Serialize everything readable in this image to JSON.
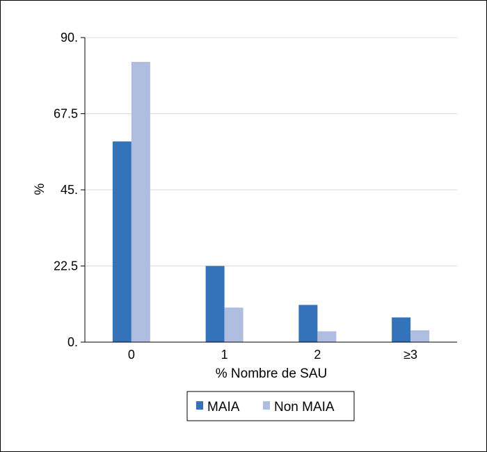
{
  "chart_data": {
    "type": "bar",
    "title": "",
    "xlabel": "% Nombre de SAU",
    "ylabel": "%",
    "categories": [
      "0",
      "1",
      "2",
      "≥3"
    ],
    "ylim": [
      0,
      90
    ],
    "yticks": [
      0,
      22.5,
      45,
      67.5,
      90
    ],
    "ytick_labels": [
      "0.",
      "22.5",
      "45.",
      "67.5",
      "90."
    ],
    "grid": true,
    "legend_position": "bottom",
    "series": [
      {
        "name": "MAIA",
        "color": "#3472b9",
        "values": [
          59.3,
          22.5,
          11.0,
          7.3
        ]
      },
      {
        "name": "Non MAIA",
        "color": "#aebde0",
        "values": [
          82.8,
          10.2,
          3.2,
          3.5
        ]
      }
    ]
  }
}
